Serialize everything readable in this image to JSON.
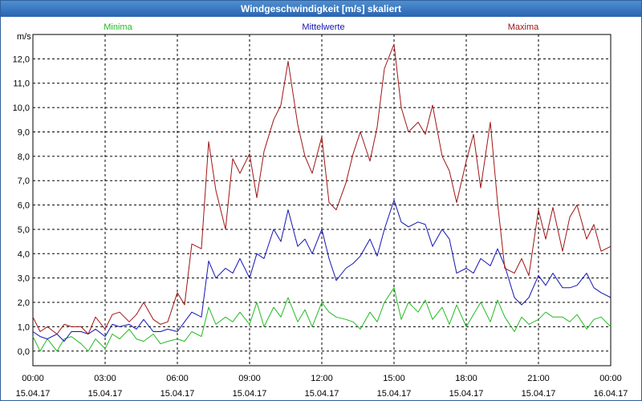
{
  "window": {
    "title": "Windgeschwindigkeit [m/s] skaliert"
  },
  "colors": {
    "minima": "#22bb22",
    "mittel": "#1414b4",
    "maxima": "#a01414",
    "grid": "#000000"
  },
  "chart_data": {
    "type": "line",
    "title": "Windgeschwindigkeit [m/s] skaliert",
    "ylabel": "m/s",
    "ylim": [
      -0.6,
      13.0
    ],
    "xlim": [
      0,
      24
    ],
    "yticks": [
      0,
      1,
      2,
      3,
      4,
      5,
      6,
      7,
      8,
      9,
      10,
      11,
      12
    ],
    "ytick_labels": [
      "0,0",
      "1,0",
      "2,0",
      "3,0",
      "4,0",
      "5,0",
      "6,0",
      "7,0",
      "8,0",
      "9,0",
      "10,0",
      "11,0",
      "12,0"
    ],
    "xticks": [
      0,
      3,
      6,
      9,
      12,
      15,
      18,
      21,
      24
    ],
    "xtick_time": [
      "00:00",
      "03:00",
      "06:00",
      "09:00",
      "12:00",
      "15:00",
      "18:00",
      "21:00",
      "00:00"
    ],
    "xtick_date": [
      "15.04.17",
      "15.04.17",
      "15.04.17",
      "15.04.17",
      "15.04.17",
      "15.04.17",
      "15.04.17",
      "15.04.17",
      "16.04.17"
    ],
    "grid": true,
    "legend": [
      "Minima",
      "Mittelwerte",
      "Maxima"
    ],
    "series": [
      {
        "name": "Minima",
        "key": "minima",
        "x": [
          0,
          0.3,
          0.6,
          1,
          1.3,
          1.6,
          2,
          2.3,
          2.6,
          3,
          3.3,
          3.6,
          4,
          4.3,
          4.6,
          5,
          5.3,
          5.6,
          6,
          6.3,
          6.6,
          7,
          7.3,
          7.6,
          8,
          8.3,
          8.6,
          9,
          9.3,
          9.6,
          10,
          10.3,
          10.6,
          11,
          11.3,
          11.6,
          12,
          12.3,
          12.6,
          13,
          13.3,
          13.6,
          14,
          14.3,
          14.6,
          15,
          15.3,
          15.6,
          16,
          16.3,
          16.6,
          17,
          17.3,
          17.6,
          18,
          18.3,
          18.6,
          19,
          19.3,
          19.6,
          20,
          20.3,
          20.6,
          21,
          21.3,
          21.6,
          22,
          22.3,
          22.6,
          23,
          23.3,
          23.6,
          24
        ],
        "y": [
          0.6,
          0.0,
          0.5,
          0.0,
          0.5,
          0.6,
          0.3,
          0.0,
          0.5,
          0.1,
          0.7,
          0.5,
          0.9,
          0.5,
          0.4,
          0.7,
          0.3,
          0.4,
          0.5,
          0.4,
          0.8,
          0.6,
          1.8,
          1.1,
          1.4,
          1.2,
          1.6,
          1.1,
          2.0,
          1.0,
          1.8,
          1.4,
          2.2,
          1.2,
          1.7,
          1.0,
          2.0,
          1.6,
          1.4,
          1.3,
          1.2,
          0.9,
          1.6,
          1.2,
          2.0,
          2.6,
          1.3,
          2.0,
          1.6,
          2.1,
          1.3,
          1.8,
          1.1,
          1.9,
          1.0,
          1.5,
          2.0,
          1.2,
          2.1,
          1.4,
          0.8,
          1.4,
          1.1,
          1.3,
          1.6,
          1.4,
          1.4,
          1.2,
          1.5,
          0.9,
          1.3,
          1.4,
          1.0
        ]
      },
      {
        "name": "Mittelwerte",
        "key": "mittel",
        "x": [
          0,
          0.3,
          0.6,
          1,
          1.3,
          1.6,
          2,
          2.3,
          2.6,
          3,
          3.3,
          3.6,
          4,
          4.3,
          4.6,
          5,
          5.3,
          5.6,
          6,
          6.3,
          6.6,
          7,
          7.3,
          7.6,
          8,
          8.3,
          8.6,
          9,
          9.3,
          9.6,
          10,
          10.3,
          10.6,
          11,
          11.3,
          11.6,
          12,
          12.3,
          12.6,
          13,
          13.3,
          13.6,
          14,
          14.3,
          14.6,
          15,
          15.3,
          15.6,
          16,
          16.3,
          16.6,
          17,
          17.3,
          17.6,
          18,
          18.3,
          18.6,
          19,
          19.3,
          19.6,
          20,
          20.3,
          20.6,
          21,
          21.3,
          21.6,
          22,
          22.3,
          22.6,
          23,
          23.3,
          23.6,
          24
        ],
        "y": [
          0.8,
          0.6,
          0.5,
          0.7,
          0.4,
          0.8,
          0.8,
          0.7,
          0.9,
          0.6,
          1.1,
          1.0,
          1.1,
          0.9,
          1.3,
          0.8,
          0.8,
          0.9,
          0.8,
          1.2,
          1.6,
          1.4,
          3.7,
          3.0,
          3.4,
          3.2,
          3.8,
          3.0,
          4.0,
          3.8,
          5.0,
          4.5,
          5.8,
          4.3,
          4.6,
          4.0,
          5.0,
          3.8,
          2.9,
          3.4,
          3.6,
          3.9,
          4.6,
          3.9,
          5.0,
          6.2,
          5.3,
          5.1,
          5.3,
          5.2,
          4.3,
          5.0,
          4.6,
          3.2,
          3.4,
          3.2,
          3.8,
          3.5,
          4.2,
          3.5,
          2.2,
          1.9,
          2.2,
          3.1,
          2.7,
          3.2,
          2.6,
          2.6,
          2.7,
          3.2,
          2.6,
          2.4,
          2.2
        ]
      },
      {
        "name": "Maxima",
        "key": "maxima",
        "x": [
          0,
          0.3,
          0.6,
          1,
          1.3,
          1.6,
          2,
          2.3,
          2.6,
          3,
          3.3,
          3.6,
          4,
          4.3,
          4.6,
          5,
          5.3,
          5.6,
          6,
          6.3,
          6.6,
          7,
          7.3,
          7.6,
          8,
          8.3,
          8.6,
          9,
          9.3,
          9.6,
          10,
          10.3,
          10.6,
          11,
          11.3,
          11.6,
          12,
          12.3,
          12.6,
          13,
          13.3,
          13.6,
          14,
          14.3,
          14.6,
          15,
          15.3,
          15.6,
          16,
          16.3,
          16.6,
          17,
          17.3,
          17.6,
          18,
          18.3,
          18.6,
          19,
          19.3,
          19.6,
          20,
          20.3,
          20.6,
          21,
          21.3,
          21.6,
          22,
          22.3,
          22.6,
          23,
          23.3,
          23.6,
          24
        ],
        "y": [
          1.4,
          0.8,
          1.0,
          0.7,
          1.1,
          1.0,
          1.0,
          0.7,
          1.4,
          0.9,
          1.5,
          1.6,
          1.2,
          1.5,
          2.0,
          1.3,
          1.1,
          1.2,
          2.4,
          1.9,
          4.4,
          4.2,
          8.6,
          6.6,
          5.0,
          7.9,
          7.3,
          8.1,
          6.3,
          8.2,
          9.5,
          10.1,
          11.9,
          9.3,
          8.0,
          7.3,
          8.8,
          6.1,
          5.8,
          6.9,
          8.1,
          9.0,
          7.8,
          9.2,
          11.6,
          12.6,
          10.0,
          9.0,
          9.4,
          8.9,
          10.1,
          8.0,
          7.4,
          6.1,
          7.8,
          8.9,
          6.7,
          9.4,
          6.1,
          3.4,
          3.2,
          3.8,
          3.1,
          5.8,
          4.6,
          5.9,
          4.1,
          5.5,
          6.0,
          4.6,
          5.2,
          4.1,
          4.3
        ]
      }
    ]
  }
}
